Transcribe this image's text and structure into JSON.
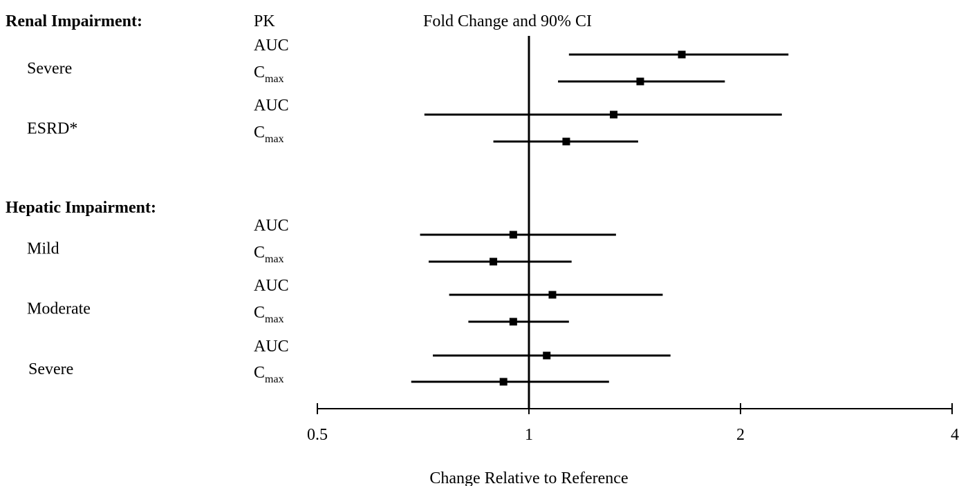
{
  "chart_data": {
    "type": "scatter",
    "subtype": "forest-plot",
    "title": "Fold Change and 90% CI",
    "column_header": "PK",
    "xlabel": "Change Relative to Reference",
    "xscale": "log2",
    "xlim": [
      0.5,
      4
    ],
    "xticks": [
      0.5,
      1,
      2,
      4
    ],
    "xtick_labels": [
      "0.5",
      "1",
      "2",
      "4"
    ],
    "reference_line": 1,
    "marker": "square",
    "colors": {
      "marker": "#000000",
      "line": "#000000",
      "background": "#ffffff"
    },
    "sections": [
      {
        "heading": "Renal Impairment:",
        "groups": [
          {
            "label": "Severe",
            "rows": [
              {
                "pk": "AUC",
                "sub": "",
                "estimate": 1.65,
                "lower": 1.14,
                "upper": 2.34
              },
              {
                "pk": "C",
                "sub": "max",
                "estimate": 1.44,
                "lower": 1.1,
                "upper": 1.9
              }
            ]
          },
          {
            "label": "ESRD*",
            "rows": [
              {
                "pk": "AUC",
                "sub": "",
                "estimate": 1.32,
                "lower": 0.71,
                "upper": 2.29
              },
              {
                "pk": "C",
                "sub": "max",
                "estimate": 1.13,
                "lower": 0.89,
                "upper": 1.43
              }
            ]
          }
        ]
      },
      {
        "heading": "Hepatic Impairment:",
        "groups": [
          {
            "label": "Mild",
            "rows": [
              {
                "pk": "AUC",
                "sub": "",
                "estimate": 0.95,
                "lower": 0.7,
                "upper": 1.33
              },
              {
                "pk": "C",
                "sub": "max",
                "estimate": 0.89,
                "lower": 0.72,
                "upper": 1.15
              }
            ]
          },
          {
            "label": "Moderate",
            "rows": [
              {
                "pk": "AUC",
                "sub": "",
                "estimate": 1.08,
                "lower": 0.77,
                "upper": 1.55
              },
              {
                "pk": "C",
                "sub": "max",
                "estimate": 0.95,
                "lower": 0.82,
                "upper": 1.14
              }
            ]
          },
          {
            "label": "Severe",
            "rows": [
              {
                "pk": "AUC",
                "sub": "",
                "estimate": 1.06,
                "lower": 0.73,
                "upper": 1.59
              },
              {
                "pk": "C",
                "sub": "max",
                "estimate": 0.92,
                "lower": 0.68,
                "upper": 1.3
              }
            ]
          }
        ]
      }
    ]
  }
}
